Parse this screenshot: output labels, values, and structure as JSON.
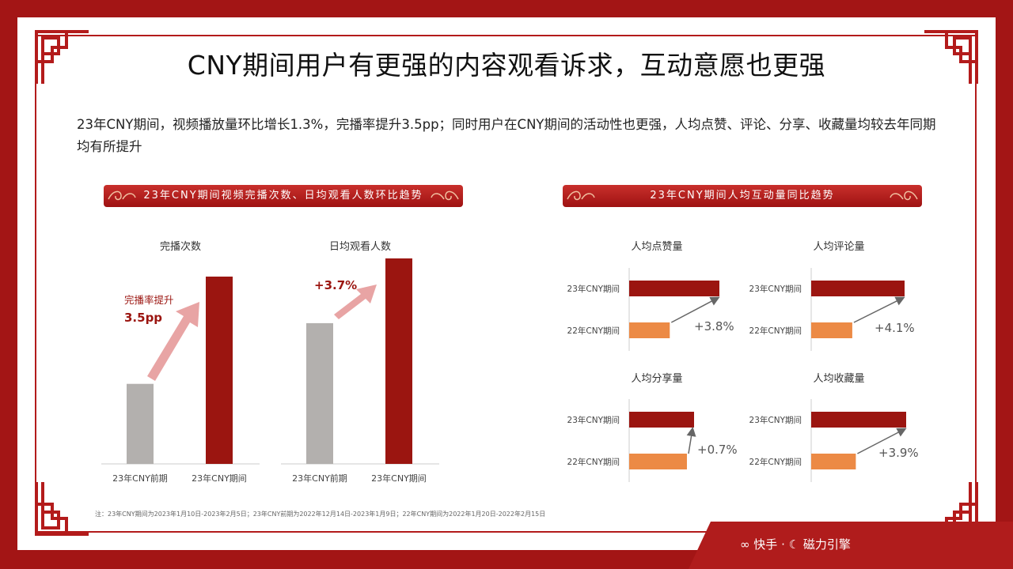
{
  "title": "CNY期间用户有更强的内容观看诉求，互动意愿也更强",
  "description": "23年CNY期间，视频播放量环比增长1.3%，完播率提升3.5pp；同时用户在CNY期间的活动性也更强，人均点赞、评论、分享、收藏量均较去年同期均有所提升",
  "left_banner": "23年CNY期间视频完播次数、日均观看人数环比趋势",
  "right_banner": "23年CNY期间人均互动量同比趋势",
  "note": "注：23年CNY期间为2023年1月10日-2023年2月5日；23年CNY前期为2022年12月14日-2023年1月9日；22年CNY期间为2022年1月20日-2022年2月15日",
  "footer": {
    "brand1": "快手",
    "dot": "·",
    "brand2": "磁力引擎"
  },
  "colors": {
    "dark_red": "#9b1510",
    "gray": "#b3b0ae",
    "orange": "#ec8a45",
    "pink_arrow": "#e8a4a4"
  },
  "chart_data": [
    {
      "type": "bar",
      "title": "完播次数",
      "categories": [
        "23年CNY前期",
        "23年CNY期间"
      ],
      "values": [
        100,
        234
      ],
      "colors": [
        "#b3b0ae",
        "#9b1510"
      ],
      "annotation": {
        "label": "完播率提升",
        "value": "3.5pp"
      }
    },
    {
      "type": "bar",
      "title": "日均观看人数",
      "categories": [
        "23年CNY前期",
        "23年CNY期间"
      ],
      "values": [
        100,
        146
      ],
      "colors": [
        "#b3b0ae",
        "#9b1510"
      ],
      "annotation": {
        "label": "",
        "value": "+3.7%"
      }
    },
    {
      "type": "bar",
      "orientation": "horizontal",
      "title": "人均点赞量",
      "categories": [
        "23年CNY期间",
        "22年CNY期间"
      ],
      "values": [
        100,
        45
      ],
      "colors": [
        "#9b1510",
        "#ec8a45"
      ],
      "annotation": "+3.8%"
    },
    {
      "type": "bar",
      "orientation": "horizontal",
      "title": "人均评论量",
      "categories": [
        "23年CNY期间",
        "22年CNY期间"
      ],
      "values": [
        100,
        44
      ],
      "colors": [
        "#9b1510",
        "#ec8a45"
      ],
      "annotation": "+4.1%"
    },
    {
      "type": "bar",
      "orientation": "horizontal",
      "title": "人均分享量",
      "categories": [
        "23年CNY期间",
        "22年CNY期间"
      ],
      "values": [
        100,
        89
      ],
      "colors": [
        "#9b1510",
        "#ec8a45"
      ],
      "annotation": "+0.7%"
    },
    {
      "type": "bar",
      "orientation": "horizontal",
      "title": "人均收藏量",
      "categories": [
        "23年CNY期间",
        "22年CNY期间"
      ],
      "values": [
        100,
        47
      ],
      "colors": [
        "#9b1510",
        "#ec8a45"
      ],
      "annotation": "+3.9%"
    }
  ]
}
